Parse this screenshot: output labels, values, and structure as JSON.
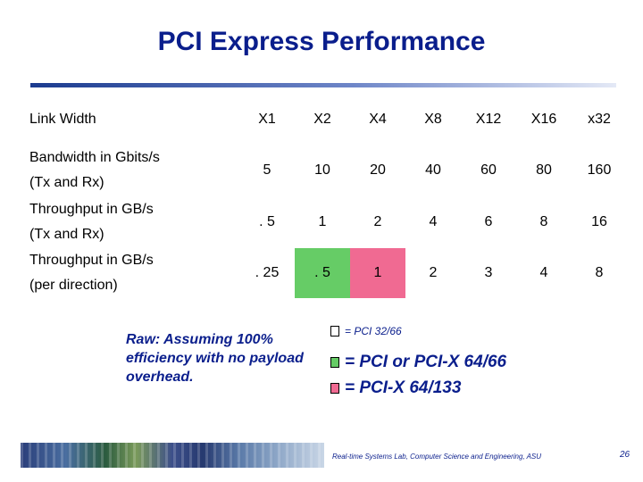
{
  "title": "PCI Express Performance",
  "colors": {
    "pci_32_66": "#ffffff",
    "pci_64_66": "#66cc66",
    "pcix_64_133": "#f06a92"
  },
  "table": {
    "rows": [
      {
        "label": "Link Width",
        "cells": [
          "X1",
          "X2",
          "X4",
          "X8",
          "X12",
          "X16",
          "x32"
        ]
      },
      {
        "label_line1": "Bandwidth in Gbits/s",
        "label_line2": "(Tx and Rx)",
        "cells": [
          "5",
          "10",
          "20",
          "40",
          "60",
          "80",
          "160"
        ]
      },
      {
        "label_line1": "Throughput in GB/s",
        "label_line2": "(Tx and Rx)",
        "cells": [
          ". 5",
          "1",
          "2",
          "4",
          "6",
          "8",
          "16"
        ]
      },
      {
        "label_line1": "Throughput in GB/s",
        "label_line2": "(per direction)",
        "cells": [
          ". 25",
          ". 5",
          "1",
          "2",
          "3",
          "4",
          "8"
        ]
      }
    ]
  },
  "note": "Raw: Assuming 100% efficiency with no payload overhead.",
  "legend": [
    {
      "text": "= PCI 32/66",
      "color": "white"
    },
    {
      "text": "= PCI or PCI-X 64/66",
      "color": "green"
    },
    {
      "text": "= PCI-X 64/133",
      "color": "pink"
    }
  ],
  "footer": {
    "text": "Real-time Systems Lab, Computer Science and Engineering, ASU",
    "page": "26"
  }
}
